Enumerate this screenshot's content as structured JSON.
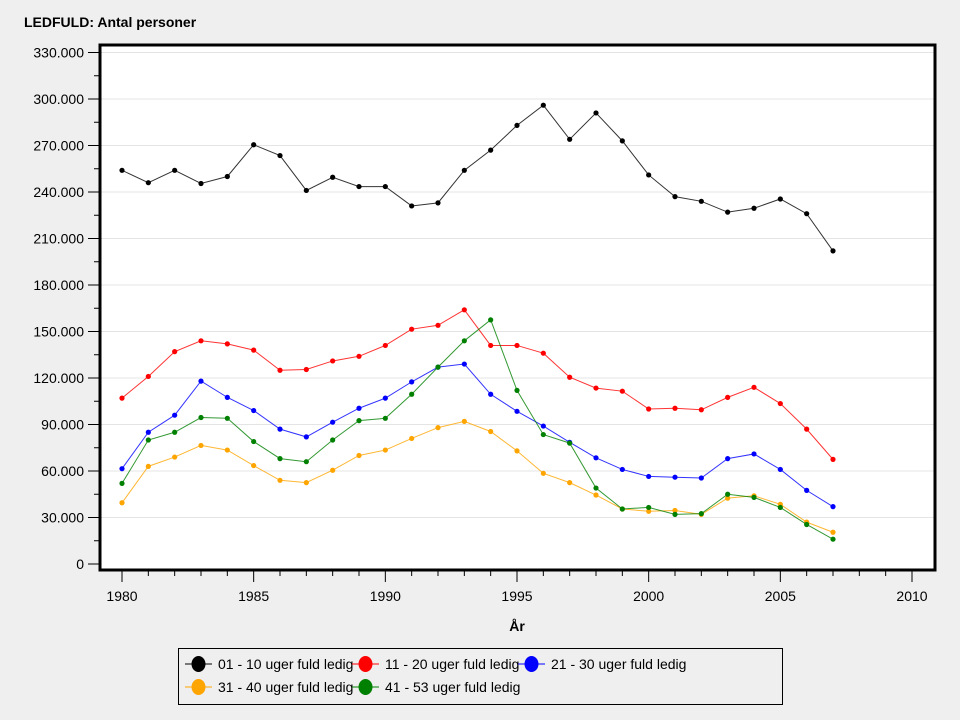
{
  "chart_data": {
    "type": "line",
    "title": "LEDFULD: Antal personer",
    "xlabel": "År",
    "ylabel": "",
    "xlim": [
      1979.2,
      2010.9
    ],
    "ylim": [
      0,
      340000
    ],
    "x_ticks": [
      1980,
      1985,
      1990,
      1995,
      2000,
      2005,
      2010
    ],
    "y_ticks": [
      0,
      30000,
      60000,
      90000,
      120000,
      150000,
      180000,
      210000,
      240000,
      270000,
      300000,
      330000
    ],
    "y_tick_labels": [
      "0",
      "30.000",
      "60.000",
      "90.000",
      "120.000",
      "150.000",
      "180.000",
      "210.000",
      "240.000",
      "270.000",
      "300.000",
      "330.000"
    ],
    "grid": true,
    "legend_position": "bottom",
    "x": [
      1980,
      1981,
      1982,
      1983,
      1984,
      1985,
      1986,
      1987,
      1988,
      1989,
      1990,
      1991,
      1992,
      1993,
      1994,
      1995,
      1996,
      1997,
      1998,
      1999,
      2000,
      2001,
      2002,
      2003,
      2004,
      2005,
      2006,
      2007
    ],
    "series": [
      {
        "name": "01 - 10 uger fuld ledig",
        "color": "#000000",
        "values": [
          254000,
          246000,
          254000,
          245500,
          250000,
          270500,
          263500,
          241000,
          249500,
          243500,
          243500,
          231000,
          233000,
          254000,
          267000,
          283000,
          296000,
          274000,
          291000,
          273000,
          251000,
          237000,
          234000,
          227000,
          229500,
          235500,
          226000,
          202000
        ]
      },
      {
        "name": "11 - 20 uger fuld ledig",
        "color": "#ff0000",
        "values": [
          107000,
          121000,
          137000,
          144000,
          142000,
          138000,
          125000,
          125500,
          131000,
          134000,
          141000,
          151500,
          154000,
          164000,
          141000,
          141000,
          136000,
          120500,
          113500,
          111500,
          100000,
          100500,
          99500,
          107500,
          114000,
          103500,
          87000,
          67500
        ]
      },
      {
        "name": "21 - 30 uger fuld ledig",
        "color": "#0000ff",
        "values": [
          61500,
          85000,
          96000,
          118000,
          107500,
          99000,
          87000,
          82000,
          91500,
          100500,
          107000,
          117500,
          127000,
          129000,
          109500,
          98500,
          89000,
          78500,
          68500,
          61000,
          56500,
          56000,
          55500,
          68000,
          71000,
          61000,
          47500,
          37000
        ]
      },
      {
        "name": "31 - 40 uger fuld ledig",
        "color": "#ffa500",
        "values": [
          39500,
          63000,
          69000,
          76500,
          73500,
          63500,
          54000,
          52500,
          60500,
          70000,
          73500,
          81000,
          88000,
          92000,
          85500,
          73000,
          58500,
          52500,
          44500,
          35500,
          34000,
          34500,
          32000,
          42500,
          44000,
          38500,
          27000,
          20500
        ]
      },
      {
        "name": "41 - 53 uger fuld ledig",
        "color": "#008000",
        "values": [
          52000,
          80000,
          85000,
          94500,
          94000,
          79000,
          68000,
          66000,
          80000,
          92500,
          94000,
          109500,
          127000,
          144000,
          157500,
          112000,
          83500,
          78000,
          49000,
          35500,
          36500,
          32000,
          32500,
          45000,
          43000,
          36500,
          25500,
          16000
        ]
      }
    ]
  }
}
